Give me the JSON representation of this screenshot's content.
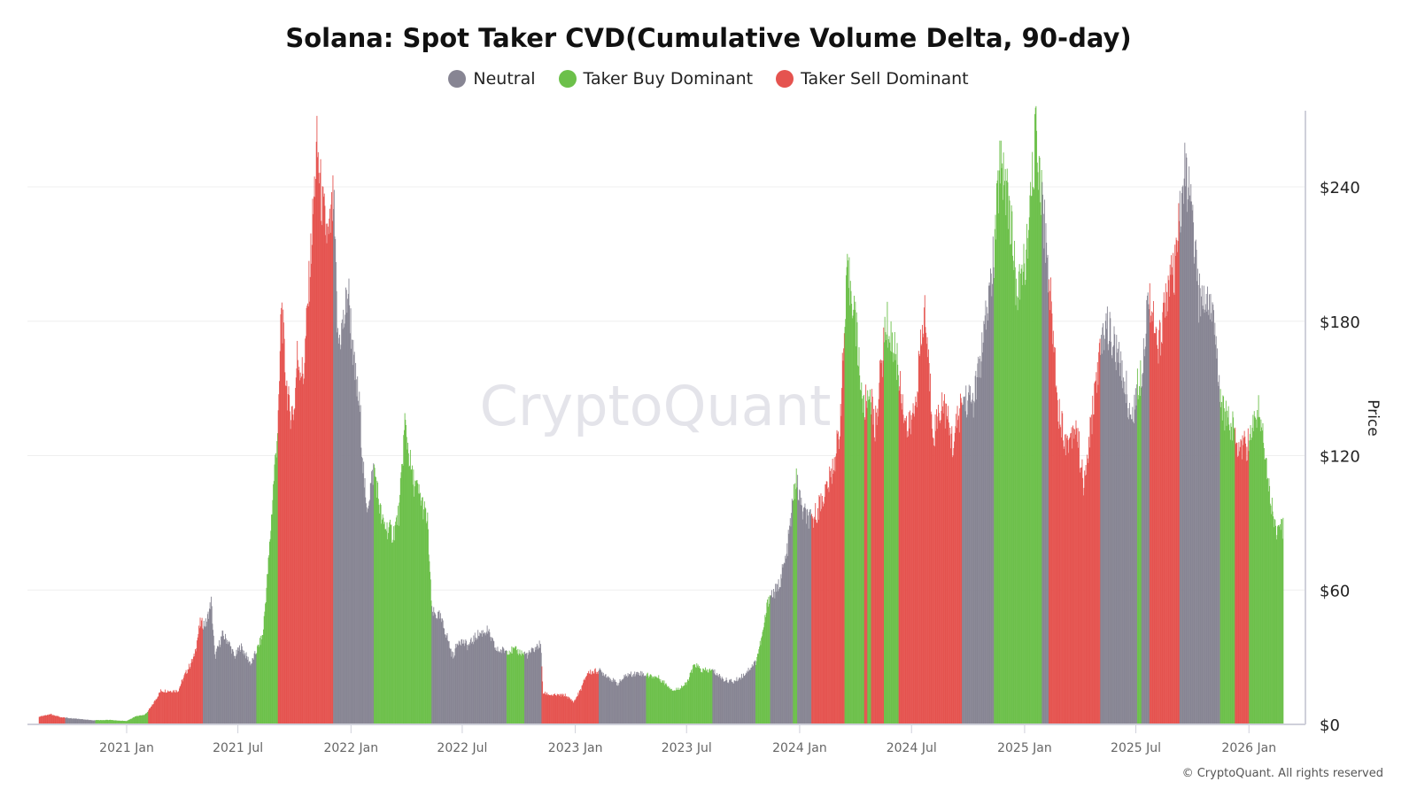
{
  "title": "Solana: Spot Taker CVD(Cumulative Volume Delta, 90-day)",
  "legend": [
    {
      "label": "Neutral",
      "color": "#878593"
    },
    {
      "label": "Taker Buy Dominant",
      "color": "#6cc04a"
    },
    {
      "label": "Taker Sell Dominant",
      "color": "#e5534f"
    }
  ],
  "watermark": "CryptoQuant",
  "copyright": "© CryptoQuant. All rights reserved",
  "chart_data": {
    "type": "bar",
    "title": "Solana: Spot Taker CVD(Cumulative Volume Delta, 90-day)",
    "ylabel": "Price",
    "yaxis_side": "right",
    "ylim": [
      0,
      270
    ],
    "yticks": [
      0,
      60,
      120,
      180,
      240
    ],
    "ytick_labels": [
      "$0",
      "$60",
      "$120",
      "$180",
      "$240"
    ],
    "xtick_labels": [
      "2021 Jan",
      "2021 Jul",
      "2022 Jan",
      "2022 Jul",
      "2023 Jan",
      "2023 Jul",
      "2024 Jan",
      "2024 Jul",
      "2025 Jan",
      "2025 Jul",
      "2026 Jan"
    ],
    "xticks": [
      "2021-01-01",
      "2021-07-01",
      "2022-01-01",
      "2022-07-01",
      "2023-01-01",
      "2023-07-01",
      "2024-01-01",
      "2024-07-01",
      "2025-01-01",
      "2025-07-01",
      "2026-01-01"
    ],
    "grid": "horizontal",
    "legend_position": "top",
    "series_name": "Price",
    "price": [
      [
        "2020-08-11",
        3.5
      ],
      [
        "2020-08-30",
        4.5
      ],
      [
        "2020-09-15",
        3.2
      ],
      [
        "2020-10-10",
        2.5
      ],
      [
        "2020-11-05",
        1.8
      ],
      [
        "2020-12-01",
        2.0
      ],
      [
        "2020-12-31",
        1.5
      ],
      [
        "2021-01-15",
        3.5
      ],
      [
        "2021-01-31",
        4.5
      ],
      [
        "2021-02-10",
        8
      ],
      [
        "2021-02-25",
        15
      ],
      [
        "2021-03-10",
        15
      ],
      [
        "2021-03-25",
        15
      ],
      [
        "2021-04-05",
        22
      ],
      [
        "2021-04-20",
        30
      ],
      [
        "2021-04-30",
        45
      ],
      [
        "2021-05-10",
        45
      ],
      [
        "2021-05-18",
        55
      ],
      [
        "2021-05-24",
        30
      ],
      [
        "2021-06-05",
        40
      ],
      [
        "2021-06-15",
        37
      ],
      [
        "2021-06-25",
        30
      ],
      [
        "2021-07-05",
        35
      ],
      [
        "2021-07-15",
        30
      ],
      [
        "2021-07-22",
        27
      ],
      [
        "2021-07-31",
        33
      ],
      [
        "2021-08-10",
        40
      ],
      [
        "2021-08-20",
        75
      ],
      [
        "2021-08-28",
        110
      ],
      [
        "2021-09-05",
        140
      ],
      [
        "2021-09-09",
        190
      ],
      [
        "2021-09-15",
        160
      ],
      [
        "2021-09-22",
        140
      ],
      [
        "2021-09-30",
        140
      ],
      [
        "2021-10-05",
        165
      ],
      [
        "2021-10-15",
        155
      ],
      [
        "2021-10-25",
        200
      ],
      [
        "2021-11-06",
        258
      ],
      [
        "2021-11-15",
        230
      ],
      [
        "2021-11-25",
        215
      ],
      [
        "2021-12-03",
        235
      ],
      [
        "2021-12-10",
        170
      ],
      [
        "2021-12-20",
        180
      ],
      [
        "2021-12-27",
        195
      ],
      [
        "2022-01-05",
        160
      ],
      [
        "2022-01-15",
        140
      ],
      [
        "2022-01-25",
        95
      ],
      [
        "2022-02-07",
        115
      ],
      [
        "2022-02-20",
        90
      ],
      [
        "2022-03-10",
        85
      ],
      [
        "2022-03-20",
        95
      ],
      [
        "2022-03-29",
        135
      ],
      [
        "2022-04-10",
        110
      ],
      [
        "2022-04-25",
        100
      ],
      [
        "2022-05-05",
        90
      ],
      [
        "2022-05-12",
        50
      ],
      [
        "2022-05-25",
        48
      ],
      [
        "2022-06-05",
        40
      ],
      [
        "2022-06-15",
        30
      ],
      [
        "2022-06-25",
        38
      ],
      [
        "2022-07-10",
        35
      ],
      [
        "2022-07-25",
        40
      ],
      [
        "2022-08-10",
        42
      ],
      [
        "2022-08-25",
        33
      ],
      [
        "2022-09-11",
        33
      ],
      [
        "2022-09-25",
        33
      ],
      [
        "2022-10-15",
        31
      ],
      [
        "2022-11-05",
        36
      ],
      [
        "2022-11-09",
        14
      ],
      [
        "2022-11-25",
        13
      ],
      [
        "2022-12-15",
        13
      ],
      [
        "2022-12-29",
        10
      ],
      [
        "2023-01-10",
        16
      ],
      [
        "2023-01-20",
        23
      ],
      [
        "2023-02-08",
        24
      ],
      [
        "2023-02-20",
        22
      ],
      [
        "2023-03-10",
        18
      ],
      [
        "2023-03-25",
        22
      ],
      [
        "2023-04-15",
        23
      ],
      [
        "2023-04-26",
        22
      ],
      [
        "2023-05-15",
        21
      ],
      [
        "2023-06-10",
        15
      ],
      [
        "2023-06-30",
        18
      ],
      [
        "2023-07-14",
        27
      ],
      [
        "2023-07-25",
        24
      ],
      [
        "2023-08-12",
        24
      ],
      [
        "2023-08-30",
        20
      ],
      [
        "2023-09-15",
        19
      ],
      [
        "2023-10-01",
        22
      ],
      [
        "2023-10-21",
        28
      ],
      [
        "2023-11-01",
        40
      ],
      [
        "2023-11-11",
        57
      ],
      [
        "2023-11-25",
        60
      ],
      [
        "2023-12-10",
        75
      ],
      [
        "2023-12-25",
        110
      ],
      [
        "2024-01-05",
        95
      ],
      [
        "2024-01-20",
        90
      ],
      [
        "2024-02-05",
        100
      ],
      [
        "2024-02-20",
        110
      ],
      [
        "2024-03-05",
        130
      ],
      [
        "2024-03-18",
        200
      ],
      [
        "2024-03-28",
        190
      ],
      [
        "2024-04-13",
        140
      ],
      [
        "2024-04-25",
        150
      ],
      [
        "2024-05-01",
        130
      ],
      [
        "2024-05-20",
        180
      ],
      [
        "2024-06-05",
        165
      ],
      [
        "2024-06-24",
        130
      ],
      [
        "2024-07-05",
        140
      ],
      [
        "2024-07-22",
        185
      ],
      [
        "2024-08-05",
        130
      ],
      [
        "2024-08-20",
        145
      ],
      [
        "2024-09-06",
        125
      ],
      [
        "2024-09-21",
        145
      ],
      [
        "2024-10-10",
        145
      ],
      [
        "2024-10-25",
        170
      ],
      [
        "2024-11-12",
        210
      ],
      [
        "2024-11-22",
        255
      ],
      [
        "2024-12-05",
        235
      ],
      [
        "2024-12-20",
        190
      ],
      [
        "2025-01-06",
        215
      ],
      [
        "2025-01-19",
        265
      ],
      [
        "2025-01-29",
        235
      ],
      [
        "2025-02-09",
        200
      ],
      [
        "2025-02-25",
        140
      ],
      [
        "2025-03-10",
        125
      ],
      [
        "2025-03-25",
        135
      ],
      [
        "2025-04-07",
        105
      ],
      [
        "2025-04-25",
        150
      ],
      [
        "2025-05-12",
        180
      ],
      [
        "2025-05-25",
        170
      ],
      [
        "2025-06-15",
        150
      ],
      [
        "2025-06-22",
        135
      ],
      [
        "2025-07-10",
        160
      ],
      [
        "2025-07-22",
        195
      ],
      [
        "2025-08-05",
        165
      ],
      [
        "2025-08-20",
        195
      ],
      [
        "2025-09-01",
        200
      ],
      [
        "2025-09-18",
        248
      ],
      [
        "2025-10-01",
        225
      ],
      [
        "2025-10-10",
        190
      ],
      [
        "2025-10-20",
        190
      ],
      [
        "2025-10-31",
        190
      ],
      [
        "2025-11-10",
        160
      ],
      [
        "2025-11-20",
        140
      ],
      [
        "2025-12-01",
        135
      ],
      [
        "2025-12-15",
        125
      ],
      [
        "2026-01-01",
        125
      ],
      [
        "2026-01-15",
        142
      ],
      [
        "2026-01-25",
        127
      ],
      [
        "2026-02-05",
        100
      ],
      [
        "2026-02-15",
        85
      ],
      [
        "2026-02-25",
        88
      ]
    ],
    "regimes": [
      [
        "2020-08-11",
        "2020-09-23",
        "Taker Sell Dominant"
      ],
      [
        "2020-09-23",
        "2020-11-11",
        "Neutral"
      ],
      [
        "2020-11-11",
        "2021-02-05",
        "Taker Buy Dominant"
      ],
      [
        "2021-02-05",
        "2021-05-05",
        "Taker Sell Dominant"
      ],
      [
        "2021-05-05",
        "2021-07-31",
        "Neutral"
      ],
      [
        "2021-07-31",
        "2021-09-04",
        "Taker Buy Dominant"
      ],
      [
        "2021-09-04",
        "2021-12-03",
        "Taker Sell Dominant"
      ],
      [
        "2021-12-03",
        "2022-02-07",
        "Neutral"
      ],
      [
        "2022-02-07",
        "2022-05-12",
        "Taker Buy Dominant"
      ],
      [
        "2022-05-12",
        "2022-09-11",
        "Neutral"
      ],
      [
        "2022-09-11",
        "2022-10-10",
        "Taker Buy Dominant"
      ],
      [
        "2022-10-10",
        "2022-11-07",
        "Neutral"
      ],
      [
        "2022-11-07",
        "2023-02-08",
        "Taker Sell Dominant"
      ],
      [
        "2023-02-08",
        "2023-04-26",
        "Neutral"
      ],
      [
        "2023-04-26",
        "2023-08-12",
        "Taker Buy Dominant"
      ],
      [
        "2023-08-12",
        "2023-10-21",
        "Neutral"
      ],
      [
        "2023-10-21",
        "2023-11-14",
        "Taker Buy Dominant"
      ],
      [
        "2023-11-14",
        "2023-12-21",
        "Neutral"
      ],
      [
        "2023-12-21",
        "2023-12-28",
        "Taker Buy Dominant"
      ],
      [
        "2023-12-28",
        "2024-01-20",
        "Neutral"
      ],
      [
        "2024-01-20",
        "2024-03-14",
        "Taker Sell Dominant"
      ],
      [
        "2024-03-14",
        "2024-04-15",
        "Taker Buy Dominant"
      ],
      [
        "2024-04-15",
        "2024-04-20",
        "Taker Sell Dominant"
      ],
      [
        "2024-04-20",
        "2024-04-26",
        "Taker Buy Dominant"
      ],
      [
        "2024-04-26",
        "2024-05-17",
        "Taker Sell Dominant"
      ],
      [
        "2024-05-17",
        "2024-06-10",
        "Taker Buy Dominant"
      ],
      [
        "2024-06-10",
        "2024-09-21",
        "Taker Sell Dominant"
      ],
      [
        "2024-09-21",
        "2024-11-12",
        "Neutral"
      ],
      [
        "2024-11-12",
        "2025-01-29",
        "Taker Buy Dominant"
      ],
      [
        "2025-01-29",
        "2025-02-09",
        "Neutral"
      ],
      [
        "2025-02-09",
        "2025-05-04",
        "Taker Sell Dominant"
      ],
      [
        "2025-05-04",
        "2025-07-03",
        "Neutral"
      ],
      [
        "2025-07-03",
        "2025-07-10",
        "Taker Buy Dominant"
      ],
      [
        "2025-07-10",
        "2025-07-23",
        "Neutral"
      ],
      [
        "2025-07-23",
        "2025-09-10",
        "Taker Sell Dominant"
      ],
      [
        "2025-09-10",
        "2025-11-15",
        "Neutral"
      ],
      [
        "2025-11-15",
        "2025-12-09",
        "Taker Buy Dominant"
      ],
      [
        "2025-12-09",
        "2026-01-01",
        "Taker Sell Dominant"
      ],
      [
        "2026-01-01",
        "2026-02-26",
        "Taker Buy Dominant"
      ]
    ]
  }
}
